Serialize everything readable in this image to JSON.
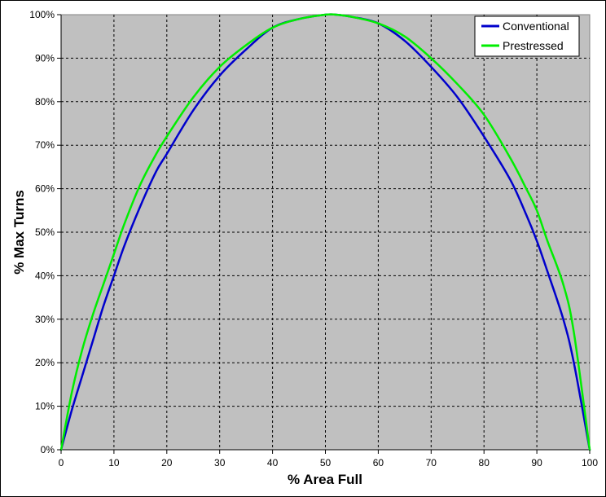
{
  "chart_data": {
    "type": "line",
    "title": "",
    "xlabel": "% Area Full",
    "ylabel": "% Max Turns",
    "xlim": [
      0,
      100
    ],
    "ylim": [
      0,
      100
    ],
    "x_ticks": [
      0,
      10,
      20,
      30,
      40,
      50,
      60,
      70,
      80,
      90,
      100
    ],
    "x_tick_labels": [
      "0",
      "10",
      "20",
      "30",
      "40",
      "50",
      "60",
      "70",
      "80",
      "90",
      "100"
    ],
    "y_ticks": [
      0,
      10,
      20,
      30,
      40,
      50,
      60,
      70,
      80,
      90,
      100
    ],
    "y_tick_labels": [
      "0%",
      "10%",
      "20%",
      "30%",
      "40%",
      "50%",
      "60%",
      "70%",
      "80%",
      "90%",
      "100%"
    ],
    "grid": true,
    "legend": "top-right",
    "plot_background": "#C0C0C0",
    "series": [
      {
        "name": "Conventional",
        "color": "#0000CC",
        "x": [
          0,
          2,
          4,
          6,
          8,
          10,
          12,
          15,
          18,
          20,
          25,
          30,
          35,
          40,
          45,
          50,
          52,
          55,
          60,
          65,
          70,
          75,
          80,
          85,
          88,
          90,
          92,
          95,
          97,
          100
        ],
        "y": [
          0,
          9,
          17,
          25,
          33,
          40,
          47,
          56,
          64,
          68,
          78,
          86,
          92,
          97,
          99,
          100,
          100,
          99.5,
          98,
          94,
          88,
          81,
          72,
          62,
          54,
          48,
          41,
          30,
          20,
          0
        ]
      },
      {
        "name": "Prestressed",
        "color": "#00EE00",
        "x": [
          0,
          2,
          4,
          6,
          8,
          10,
          12,
          15,
          18,
          20,
          25,
          30,
          35,
          40,
          45,
          50,
          52,
          55,
          60,
          65,
          70,
          75,
          80,
          85,
          88,
          90,
          92,
          95,
          97,
          100
        ],
        "y": [
          0,
          13,
          23,
          31,
          38,
          45,
          52,
          61,
          68,
          72,
          81,
          88,
          93,
          97,
          99,
          100,
          100,
          99.5,
          98,
          95,
          90,
          84,
          77,
          67,
          60,
          55,
          48,
          38,
          27,
          0
        ]
      }
    ]
  }
}
